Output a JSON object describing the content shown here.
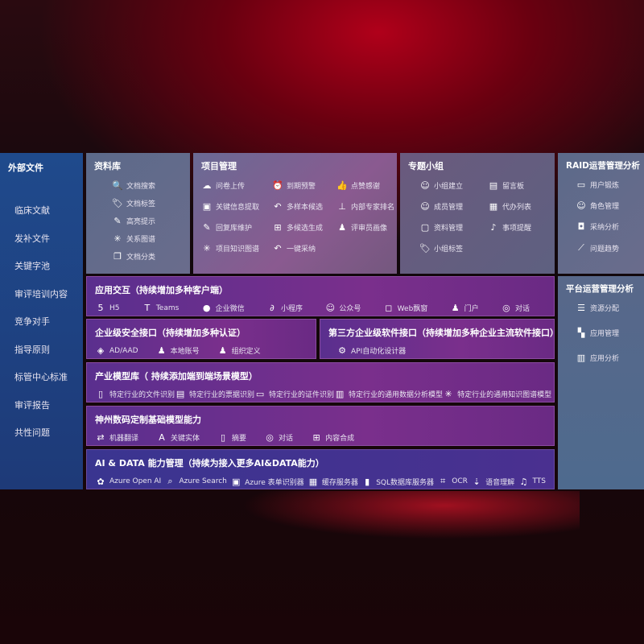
{
  "external": {
    "title": "外部文件",
    "items": [
      "临床文献",
      "发补文件",
      "关键字池",
      "审评培训内容",
      "竞争对手",
      "指导原则",
      "标管中心标准",
      "审评报告",
      "共性问题"
    ]
  },
  "library": {
    "title": "资料库",
    "items": [
      {
        "icon": "doc-search",
        "label": "文档搜索"
      },
      {
        "icon": "tag",
        "label": "文档标签"
      },
      {
        "icon": "pen",
        "label": "高亮提示"
      },
      {
        "icon": "graph",
        "label": "关系图谱"
      },
      {
        "icon": "docs",
        "label": "文档分类"
      }
    ]
  },
  "project": {
    "title": "项目管理",
    "items": [
      {
        "icon": "cloud-upload",
        "label": "问卷上传"
      },
      {
        "icon": "alarm",
        "label": "到期预警"
      },
      {
        "icon": "thumbs-up",
        "label": "点赞感谢"
      },
      {
        "icon": "image",
        "label": "关键信息提取"
      },
      {
        "icon": "reply",
        "label": "多样本候选"
      },
      {
        "icon": "rank",
        "label": "内部专家排名"
      },
      {
        "icon": "edit",
        "label": "回复库维护"
      },
      {
        "icon": "puzzle",
        "label": "多候选生成"
      },
      {
        "icon": "person",
        "label": "评审员画像"
      },
      {
        "icon": "graph",
        "label": "项目知识图谱"
      },
      {
        "icon": "reply",
        "label": "一键采纳"
      }
    ]
  },
  "group": {
    "title": "专题小组",
    "items": [
      {
        "icon": "users",
        "label": "小组建立"
      },
      {
        "icon": "bbs",
        "label": "留言板"
      },
      {
        "icon": "user-add",
        "label": "成员管理"
      },
      {
        "icon": "clipboard",
        "label": "代办列表"
      },
      {
        "icon": "folder",
        "label": "资料管理"
      },
      {
        "icon": "bell",
        "label": "事项提醒"
      },
      {
        "icon": "tag",
        "label": "小组标签"
      }
    ]
  },
  "raid": {
    "title": "RAID运营管理分析",
    "items": [
      {
        "icon": "id-card",
        "label": "用户锻炼"
      },
      {
        "icon": "users",
        "label": "角色管理"
      },
      {
        "icon": "qa",
        "label": "采纳分析"
      },
      {
        "icon": "trend",
        "label": "问题趋势"
      }
    ]
  },
  "platform": {
    "title": "平台运营管理分析",
    "items": [
      {
        "icon": "list",
        "label": "资源分配"
      },
      {
        "icon": "apps",
        "label": "应用管理"
      },
      {
        "icon": "chart",
        "label": "应用分析"
      }
    ]
  },
  "app": {
    "title": "应用交互（持续增加多种客户端）",
    "items": [
      {
        "icon": "html5",
        "label": "H5"
      },
      {
        "icon": "teams",
        "label": "Teams"
      },
      {
        "icon": "wechat",
        "label": "企业微信"
      },
      {
        "icon": "mini-program",
        "label": "小程序"
      },
      {
        "icon": "users",
        "label": "公众号"
      },
      {
        "icon": "window",
        "label": "Web飘窗"
      },
      {
        "icon": "person",
        "label": "门户"
      },
      {
        "icon": "chat",
        "label": "对话"
      }
    ]
  },
  "security": {
    "title": "企业级安全接口（持续增加多种认证）",
    "items": [
      {
        "icon": "diamond",
        "label": "AD/AAD"
      },
      {
        "icon": "user",
        "label": "本地账号"
      },
      {
        "icon": "org",
        "label": "组织定义"
      }
    ]
  },
  "third": {
    "title": "第三方企业级软件接口（持续增加多种企业主流软件接口）",
    "items": [
      {
        "icon": "gear",
        "label": "API自动化设计器"
      }
    ]
  },
  "industry": {
    "title": "产业模型库（ 持续添加端到端场景模型）",
    "items": [
      {
        "icon": "doc",
        "label": "特定行业的文件识别"
      },
      {
        "icon": "receipt",
        "label": "特定行业的票据识别"
      },
      {
        "icon": "id-card",
        "label": "特定行业的证件识别"
      },
      {
        "icon": "chart",
        "label": "特定行业的通用数据分析模型"
      },
      {
        "icon": "graph",
        "label": "特定行业的通用知识图谱模型"
      }
    ]
  },
  "base": {
    "title": "神州数码定制基础模型能力",
    "items": [
      {
        "icon": "translate",
        "label": "机器翻译"
      },
      {
        "icon": "entity",
        "label": "关键实体"
      },
      {
        "icon": "doc",
        "label": "摘要"
      },
      {
        "icon": "chat",
        "label": "对话"
      },
      {
        "icon": "puzzle",
        "label": "内容合成"
      }
    ]
  },
  "ai": {
    "title": "AI & DATA 能力管理（持续为接入更多AI&DATA能力）",
    "items": [
      {
        "icon": "openai",
        "label": "Azure Open AI"
      },
      {
        "icon": "search",
        "label": "Azure Search"
      },
      {
        "icon": "form",
        "label": "Azure 表单识别器"
      },
      {
        "icon": "cache",
        "label": "缓存服务器"
      },
      {
        "icon": "sql",
        "label": "SQL数据库服务器"
      },
      {
        "icon": "ocr",
        "label": "OCR"
      },
      {
        "icon": "mic",
        "label": "语音理解"
      },
      {
        "icon": "tts",
        "label": "TTS"
      }
    ]
  }
}
